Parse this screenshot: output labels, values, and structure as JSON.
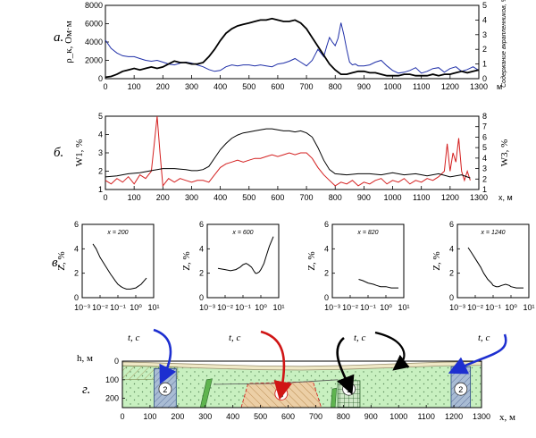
{
  "chart_data": [
    {
      "type": "line",
      "panel_label": "а.",
      "xlim": [
        0,
        1300
      ],
      "xticks": [
        0,
        100,
        200,
        300,
        400,
        500,
        600,
        700,
        800,
        900,
        1000,
        1100,
        1200,
        1300
      ],
      "x_unit": "м",
      "ylabel_left": "ρ_к, Ом·м",
      "ylim_left": [
        0,
        8000
      ],
      "yticks_left": [
        0,
        2000,
        4000,
        6000,
        8000
      ],
      "ylabel_right": "Содержание вкрапленников, %",
      "ylim_right": [
        0,
        5
      ],
      "yticks_right": [
        0,
        1,
        2,
        3,
        4,
        5
      ],
      "series": [
        {
          "axis": "left",
          "color": "#1f2fa8",
          "x": [
            0,
            20,
            40,
            60,
            80,
            100,
            120,
            140,
            160,
            180,
            200,
            220,
            240,
            260,
            280,
            300,
            320,
            340,
            360,
            380,
            400,
            420,
            440,
            460,
            480,
            500,
            520,
            540,
            560,
            580,
            600,
            620,
            640,
            660,
            680,
            700,
            720,
            730,
            740,
            750,
            760,
            770,
            780,
            790,
            800,
            810,
            820,
            830,
            840,
            850,
            860,
            870,
            880,
            900,
            920,
            940,
            960,
            980,
            1000,
            1020,
            1040,
            1060,
            1080,
            1100,
            1120,
            1140,
            1160,
            1180,
            1200,
            1220,
            1240,
            1260,
            1280,
            1300
          ],
          "y": [
            4200,
            3300,
            2800,
            2500,
            2400,
            2400,
            2200,
            2000,
            1900,
            2000,
            1800,
            1600,
            1500,
            1700,
            1800,
            1700,
            1500,
            1300,
            1000,
            800,
            900,
            1300,
            1500,
            1400,
            1500,
            1500,
            1400,
            1500,
            1400,
            1300,
            1600,
            1700,
            1900,
            2200,
            1800,
            1400,
            2000,
            2600,
            3200,
            2800,
            2400,
            3500,
            4500,
            4000,
            3600,
            4400,
            6100,
            4800,
            3200,
            1800,
            1500,
            1600,
            1400,
            1400,
            1500,
            1800,
            2000,
            1400,
            900,
            600,
            700,
            900,
            1200,
            600,
            800,
            1100,
            1200,
            700,
            1100,
            1300,
            800,
            1000,
            1300,
            900
          ]
        },
        {
          "axis": "right",
          "color": "#000000",
          "x": [
            0,
            20,
            40,
            60,
            80,
            100,
            120,
            140,
            160,
            180,
            200,
            220,
            240,
            260,
            280,
            300,
            320,
            340,
            360,
            380,
            400,
            420,
            440,
            460,
            480,
            500,
            520,
            540,
            560,
            580,
            600,
            620,
            640,
            660,
            680,
            700,
            720,
            740,
            760,
            780,
            800,
            820,
            840,
            860,
            880,
            900,
            920,
            940,
            960,
            980,
            1000,
            1020,
            1040,
            1060,
            1080,
            1100,
            1120,
            1140,
            1160,
            1180,
            1200,
            1220,
            1240,
            1260,
            1280,
            1300
          ],
          "y": [
            0.1,
            0.15,
            0.3,
            0.5,
            0.6,
            0.7,
            0.6,
            0.7,
            0.8,
            0.7,
            0.8,
            1.0,
            1.2,
            1.1,
            1.1,
            1.0,
            1.0,
            1.1,
            1.5,
            2.0,
            2.6,
            3.1,
            3.4,
            3.6,
            3.7,
            3.8,
            3.9,
            4.0,
            4.0,
            4.1,
            4.0,
            3.9,
            3.9,
            4.0,
            3.8,
            3.4,
            2.8,
            2.2,
            1.6,
            1.0,
            0.6,
            0.3,
            0.3,
            0.4,
            0.5,
            0.5,
            0.4,
            0.4,
            0.3,
            0.2,
            0.2,
            0.2,
            0.3,
            0.3,
            0.2,
            0.2,
            0.2,
            0.3,
            0.2,
            0.3,
            0.3,
            0.4,
            0.5,
            0.4,
            0.5,
            0.6
          ]
        }
      ]
    },
    {
      "type": "line",
      "panel_label": "б.",
      "xlim": [
        0,
        1300
      ],
      "xticks": [
        0,
        100,
        200,
        300,
        400,
        500,
        600,
        700,
        800,
        900,
        1000,
        1100,
        1200,
        1300
      ],
      "x_unit": "х, м",
      "ylabel_left": "W1, %",
      "ylim_left": [
        1,
        5
      ],
      "yticks_left": [
        1,
        2,
        3,
        4,
        5
      ],
      "ylabel_right": "W3, %",
      "ylim_right": [
        1,
        8
      ],
      "yticks_right": [
        1,
        2,
        3,
        4,
        5,
        6,
        7,
        8
      ],
      "series": [
        {
          "axis": "left",
          "color": "#d42020",
          "x": [
            0,
            20,
            40,
            60,
            80,
            100,
            120,
            140,
            160,
            170,
            180,
            190,
            200,
            210,
            220,
            240,
            260,
            280,
            300,
            320,
            340,
            360,
            380,
            400,
            420,
            440,
            460,
            480,
            500,
            520,
            540,
            560,
            580,
            600,
            620,
            640,
            660,
            680,
            700,
            720,
            740,
            760,
            780,
            800,
            820,
            840,
            860,
            880,
            900,
            920,
            940,
            960,
            980,
            1000,
            1020,
            1040,
            1060,
            1080,
            1100,
            1120,
            1140,
            1160,
            1180,
            1190,
            1200,
            1210,
            1220,
            1230,
            1240,
            1250,
            1260,
            1270
          ],
          "y": [
            1.5,
            1.3,
            1.6,
            1.4,
            1.7,
            1.3,
            1.8,
            1.6,
            2.0,
            3.5,
            5.0,
            3.0,
            1.2,
            1.4,
            1.6,
            1.4,
            1.6,
            1.5,
            1.4,
            1.5,
            1.5,
            1.4,
            1.8,
            2.2,
            2.4,
            2.5,
            2.6,
            2.5,
            2.6,
            2.7,
            2.7,
            2.8,
            2.9,
            2.8,
            2.9,
            3.0,
            2.9,
            3.0,
            3.0,
            2.7,
            2.2,
            1.8,
            1.5,
            1.2,
            1.4,
            1.3,
            1.5,
            1.2,
            1.4,
            1.3,
            1.5,
            1.6,
            1.3,
            1.5,
            1.4,
            1.6,
            1.3,
            1.5,
            1.4,
            1.6,
            1.5,
            1.7,
            2.0,
            3.5,
            2.0,
            3.0,
            2.5,
            3.8,
            2.0,
            1.5,
            2.0,
            1.5
          ]
        },
        {
          "axis": "right",
          "color": "#000000",
          "x": [
            0,
            40,
            80,
            120,
            160,
            200,
            240,
            280,
            300,
            320,
            340,
            360,
            380,
            400,
            420,
            440,
            460,
            480,
            500,
            520,
            540,
            560,
            580,
            600,
            620,
            640,
            660,
            680,
            700,
            720,
            740,
            760,
            780,
            800,
            840,
            880,
            920,
            960,
            1000,
            1040,
            1080,
            1120,
            1160,
            1200,
            1240,
            1270
          ],
          "y": [
            2.2,
            2.3,
            2.5,
            2.6,
            2.8,
            3.0,
            3.0,
            2.9,
            2.8,
            2.8,
            2.9,
            3.2,
            4.0,
            4.8,
            5.4,
            5.9,
            6.2,
            6.4,
            6.5,
            6.6,
            6.7,
            6.8,
            6.8,
            6.7,
            6.6,
            6.6,
            6.5,
            6.6,
            6.4,
            6.0,
            5.0,
            3.8,
            2.9,
            2.5,
            2.4,
            2.5,
            2.5,
            2.4,
            2.6,
            2.4,
            2.5,
            2.3,
            2.5,
            2.2,
            2.4,
            2.1
          ]
        }
      ]
    },
    {
      "type": "line",
      "panel_label": "в.",
      "x_scale": "log",
      "xlim": [
        0.001,
        10
      ],
      "xticks": [
        0.001,
        0.01,
        0.1,
        1,
        10
      ],
      "xtick_labels": [
        "10⁻³",
        "10⁻²",
        "10⁻¹",
        "10⁰",
        "10¹"
      ],
      "xlabel": "t, с",
      "ylabel": "Z, %",
      "ylim": [
        0,
        6
      ],
      "yticks": [
        0,
        2,
        4,
        6
      ],
      "subplots": [
        {
          "title": "x = 200",
          "x": [
            0.004,
            0.006,
            0.01,
            0.02,
            0.04,
            0.07,
            0.1,
            0.15,
            0.2,
            0.3,
            0.5,
            1,
            2,
            4
          ],
          "y": [
            4.4,
            4.0,
            3.3,
            2.6,
            1.9,
            1.4,
            1.1,
            0.9,
            0.8,
            0.7,
            0.7,
            0.8,
            1.1,
            1.6
          ]
        },
        {
          "title": "x = 600",
          "x": [
            0.004,
            0.01,
            0.02,
            0.04,
            0.07,
            0.1,
            0.15,
            0.2,
            0.3,
            0.4,
            0.5,
            0.6,
            0.8,
            1,
            1.5,
            2,
            3,
            5
          ],
          "y": [
            2.4,
            2.3,
            2.2,
            2.3,
            2.5,
            2.7,
            2.8,
            2.7,
            2.5,
            2.2,
            2.0,
            2.0,
            2.1,
            2.3,
            2.8,
            3.4,
            4.2,
            5.0
          ]
        },
        {
          "title": "x = 820",
          "x": [
            0.03,
            0.05,
            0.1,
            0.2,
            0.3,
            0.5,
            1,
            2,
            3,
            5
          ],
          "y": [
            1.5,
            1.4,
            1.2,
            1.1,
            1.0,
            0.9,
            0.9,
            0.8,
            0.8,
            0.8
          ]
        },
        {
          "title": "x = 1240",
          "x": [
            0.004,
            0.006,
            0.01,
            0.02,
            0.03,
            0.05,
            0.08,
            0.1,
            0.15,
            0.2,
            0.3,
            0.5,
            0.8,
            1,
            2,
            3,
            5
          ],
          "y": [
            4.1,
            3.7,
            3.2,
            2.5,
            2.0,
            1.5,
            1.2,
            1.0,
            0.9,
            0.9,
            1.0,
            1.1,
            1.0,
            0.9,
            0.8,
            0.8,
            0.8
          ]
        }
      ]
    },
    {
      "type": "section",
      "panel_label": "г.",
      "xlim": [
        0,
        1300
      ],
      "xticks": [
        0,
        100,
        200,
        300,
        400,
        500,
        600,
        700,
        800,
        900,
        1000,
        1100,
        1200,
        1300
      ],
      "x_unit": "х, м",
      "ylabel": "h, м",
      "ylim": [
        0,
        250
      ],
      "yticks": [
        0,
        100,
        200
      ],
      "zones": [
        {
          "label": "2",
          "x_start": 115,
          "x_end": 195
        },
        {
          "label": "3",
          "x_start": 430,
          "x_end": 720
        },
        {
          "label": "1",
          "x_start": 780,
          "x_end": 860
        },
        {
          "label": "2",
          "x_start": 1190,
          "x_end": 1260
        }
      ],
      "arrow_labels": [
        "t, с",
        "t, с",
        "t, с",
        "t, с"
      ],
      "colors": {
        "host": "#c8f0c0",
        "overburden": "#efe8c6",
        "zone2": "#9fb4cf",
        "zone3": "#e8c9a0",
        "zone1_grid": "#2a6a2a",
        "arrow_blue": "#1d2fd0",
        "arrow_red": "#d01515",
        "arrow_black": "#000000"
      }
    }
  ]
}
